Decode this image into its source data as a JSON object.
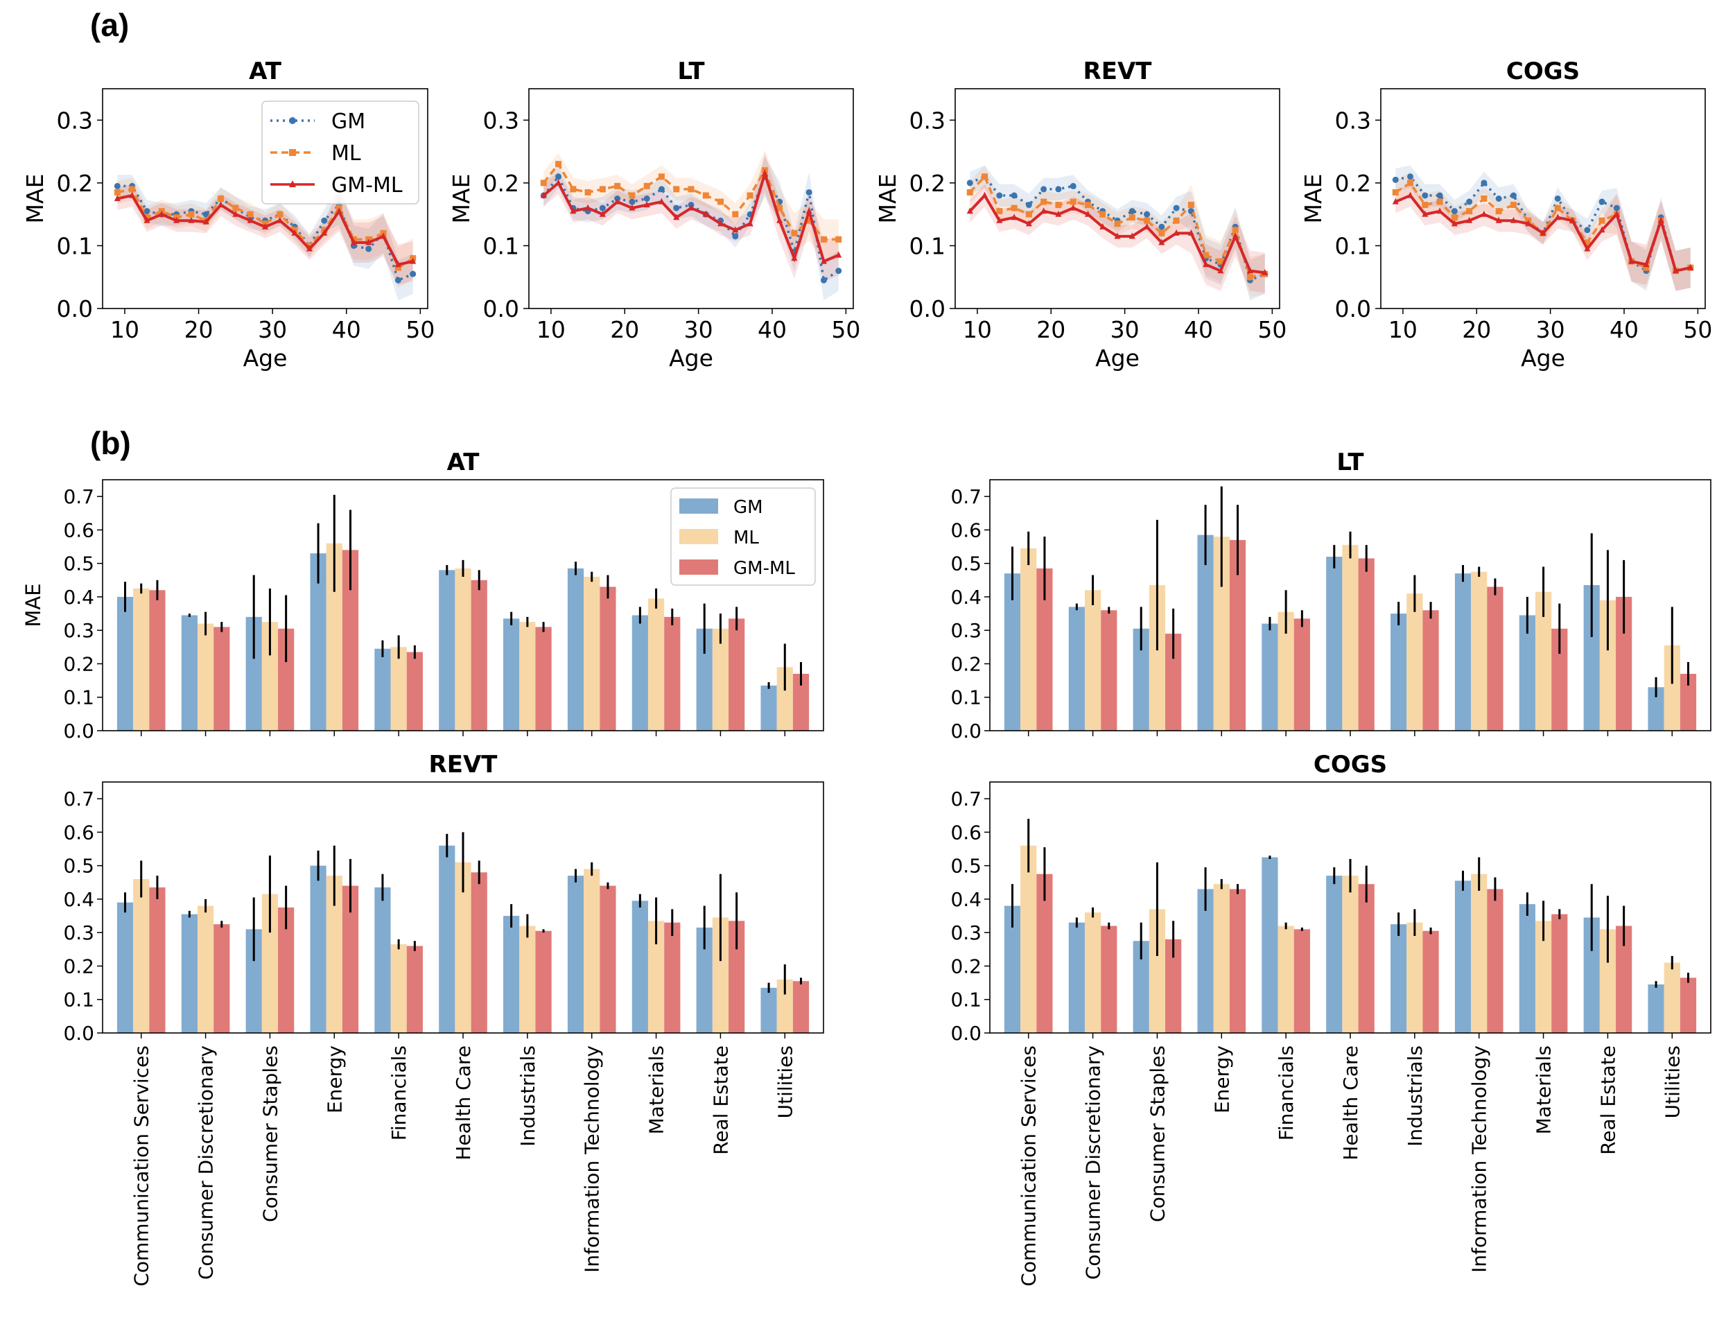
{
  "panel_labels": {
    "a": "(a)",
    "b": "(b)"
  },
  "colors": {
    "GM": "#3b75af",
    "ML": "#ef8636",
    "GM-ML": "#d62728",
    "GM_bar": "#82abd0",
    "ML_bar": "#f7d7a5",
    "GM-ML_bar": "#e07a78"
  },
  "chart_data": [
    {
      "type": "line",
      "title": "AT",
      "xlabel": "Age",
      "ylabel": "MAE",
      "xlim": [
        7,
        51
      ],
      "ylim": [
        0,
        0.35
      ],
      "xticks": [
        10,
        20,
        30,
        40,
        50
      ],
      "yticks": [
        "0.0",
        "0.1",
        "0.2",
        "0.3"
      ],
      "legend": {
        "placement": "upper-right",
        "entries": [
          "GM",
          "ML",
          "GM-ML"
        ]
      },
      "x": [
        9,
        11,
        13,
        15,
        17,
        19,
        21,
        23,
        25,
        27,
        29,
        31,
        33,
        35,
        37,
        39,
        41,
        43,
        45,
        47,
        49
      ],
      "series": [
        {
          "name": "GM",
          "values": [
            0.195,
            0.195,
            0.155,
            0.15,
            0.15,
            0.155,
            0.15,
            0.175,
            0.16,
            0.145,
            0.14,
            0.15,
            0.13,
            0.1,
            0.14,
            0.165,
            0.1,
            0.095,
            0.12,
            0.045,
            0.055
          ]
        },
        {
          "name": "ML",
          "values": [
            0.185,
            0.19,
            0.145,
            0.155,
            0.145,
            0.15,
            0.14,
            0.175,
            0.16,
            0.15,
            0.135,
            0.15,
            0.125,
            0.1,
            0.125,
            0.16,
            0.11,
            0.11,
            0.12,
            0.065,
            0.08
          ]
        },
        {
          "name": "GM-ML",
          "values": [
            0.175,
            0.18,
            0.14,
            0.15,
            0.14,
            0.14,
            0.138,
            0.165,
            0.15,
            0.14,
            0.13,
            0.14,
            0.12,
            0.095,
            0.12,
            0.155,
            0.105,
            0.105,
            0.115,
            0.07,
            0.075
          ]
        }
      ]
    },
    {
      "type": "line",
      "title": "LT",
      "xlabel": "Age",
      "ylabel": "MAE",
      "xlim": [
        7,
        51
      ],
      "ylim": [
        0,
        0.35
      ],
      "xticks": [
        10,
        20,
        30,
        40,
        50
      ],
      "yticks": [
        "0.0",
        "0.1",
        "0.2",
        "0.3"
      ],
      "x": [
        9,
        11,
        13,
        15,
        17,
        19,
        21,
        23,
        25,
        27,
        29,
        31,
        33,
        35,
        37,
        39,
        41,
        43,
        45,
        47,
        49
      ],
      "series": [
        {
          "name": "GM",
          "values": [
            0.18,
            0.21,
            0.16,
            0.155,
            0.16,
            0.175,
            0.17,
            0.175,
            0.19,
            0.16,
            0.165,
            0.15,
            0.14,
            0.115,
            0.15,
            0.21,
            0.17,
            0.09,
            0.185,
            0.045,
            0.06
          ]
        },
        {
          "name": "ML",
          "values": [
            0.2,
            0.23,
            0.19,
            0.185,
            0.19,
            0.195,
            0.18,
            0.195,
            0.21,
            0.19,
            0.19,
            0.18,
            0.17,
            0.15,
            0.18,
            0.22,
            0.16,
            0.12,
            0.14,
            0.11,
            0.11
          ]
        },
        {
          "name": "GM-ML",
          "values": [
            0.18,
            0.2,
            0.155,
            0.16,
            0.15,
            0.17,
            0.16,
            0.165,
            0.17,
            0.145,
            0.16,
            0.15,
            0.135,
            0.125,
            0.135,
            0.215,
            0.14,
            0.08,
            0.155,
            0.075,
            0.085
          ]
        }
      ]
    },
    {
      "type": "line",
      "title": "REVT",
      "xlabel": "Age",
      "ylabel": "MAE",
      "xlim": [
        7,
        51
      ],
      "ylim": [
        0,
        0.35
      ],
      "xticks": [
        10,
        20,
        30,
        40,
        50
      ],
      "yticks": [
        "0.0",
        "0.1",
        "0.2",
        "0.3"
      ],
      "x": [
        9,
        11,
        13,
        15,
        17,
        19,
        21,
        23,
        25,
        27,
        29,
        31,
        33,
        35,
        37,
        39,
        41,
        43,
        45,
        47,
        49
      ],
      "series": [
        {
          "name": "GM",
          "values": [
            0.2,
            0.21,
            0.18,
            0.18,
            0.165,
            0.19,
            0.19,
            0.195,
            0.17,
            0.155,
            0.14,
            0.155,
            0.15,
            0.13,
            0.16,
            0.155,
            0.08,
            0.07,
            0.13,
            0.045,
            0.055
          ]
        },
        {
          "name": "ML",
          "values": [
            0.185,
            0.21,
            0.155,
            0.16,
            0.15,
            0.17,
            0.165,
            0.17,
            0.165,
            0.15,
            0.135,
            0.145,
            0.14,
            0.12,
            0.14,
            0.165,
            0.085,
            0.075,
            0.125,
            0.05,
            0.055
          ]
        },
        {
          "name": "GM-ML",
          "values": [
            0.155,
            0.18,
            0.14,
            0.145,
            0.135,
            0.155,
            0.15,
            0.16,
            0.15,
            0.13,
            0.115,
            0.115,
            0.13,
            0.105,
            0.12,
            0.12,
            0.07,
            0.06,
            0.115,
            0.06,
            0.057
          ]
        }
      ]
    },
    {
      "type": "line",
      "title": "COGS",
      "xlabel": "Age",
      "ylabel": "MAE",
      "xlim": [
        7,
        51
      ],
      "ylim": [
        0,
        0.35
      ],
      "xticks": [
        10,
        20,
        30,
        40,
        50
      ],
      "yticks": [
        "0.0",
        "0.1",
        "0.2",
        "0.3"
      ],
      "x": [
        9,
        11,
        13,
        15,
        17,
        19,
        21,
        23,
        25,
        27,
        29,
        31,
        33,
        35,
        37,
        39,
        41,
        43,
        45,
        47,
        49
      ],
      "series": [
        {
          "name": "GM",
          "values": [
            0.205,
            0.21,
            0.18,
            0.18,
            0.155,
            0.17,
            0.2,
            0.175,
            0.18,
            0.14,
            0.12,
            0.175,
            0.14,
            0.125,
            0.17,
            0.16,
            0.075,
            0.06,
            0.145,
            0.06,
            0.065
          ]
        },
        {
          "name": "ML",
          "values": [
            0.185,
            0.2,
            0.165,
            0.17,
            0.145,
            0.155,
            0.175,
            0.155,
            0.165,
            0.14,
            0.12,
            0.16,
            0.14,
            0.105,
            0.14,
            0.15,
            0.075,
            0.065,
            0.14,
            0.06,
            0.065
          ]
        },
        {
          "name": "GM-ML",
          "values": [
            0.17,
            0.18,
            0.15,
            0.155,
            0.135,
            0.14,
            0.15,
            0.14,
            0.14,
            0.135,
            0.12,
            0.145,
            0.14,
            0.095,
            0.125,
            0.15,
            0.075,
            0.07,
            0.14,
            0.06,
            0.065
          ]
        }
      ]
    },
    {
      "type": "bar",
      "title": "AT",
      "ylabel": "MAE",
      "ylim": [
        0,
        0.75
      ],
      "yticks": [
        "0.0",
        "0.1",
        "0.2",
        "0.3",
        "0.4",
        "0.5",
        "0.6",
        "0.7"
      ],
      "legend": {
        "placement": "upper-right",
        "entries": [
          "GM",
          "ML",
          "GM-ML"
        ]
      },
      "categories": [
        "Communication Services",
        "Consumer Discretionary",
        "Consumer Staples",
        "Energy",
        "Financials",
        "Health Care",
        "Industrials",
        "Information Technology",
        "Materials",
        "Real Estate",
        "Utilities"
      ],
      "series": [
        {
          "name": "GM",
          "values": [
            0.4,
            0.345,
            0.34,
            0.53,
            0.245,
            0.48,
            0.335,
            0.485,
            0.345,
            0.305,
            0.135
          ],
          "err": [
            0.045,
            0.005,
            0.125,
            0.09,
            0.025,
            0.015,
            0.02,
            0.02,
            0.025,
            0.075,
            0.01
          ]
        },
        {
          "name": "ML",
          "values": [
            0.425,
            0.32,
            0.325,
            0.56,
            0.25,
            0.485,
            0.325,
            0.46,
            0.395,
            0.305,
            0.19
          ],
          "err": [
            0.015,
            0.035,
            0.1,
            0.145,
            0.035,
            0.025,
            0.015,
            0.015,
            0.03,
            0.045,
            0.07
          ]
        },
        {
          "name": "GM-ML",
          "values": [
            0.42,
            0.31,
            0.305,
            0.54,
            0.235,
            0.45,
            0.31,
            0.43,
            0.34,
            0.335,
            0.17
          ],
          "err": [
            0.03,
            0.015,
            0.1,
            0.12,
            0.02,
            0.03,
            0.015,
            0.035,
            0.025,
            0.035,
            0.035
          ]
        }
      ]
    },
    {
      "type": "bar",
      "title": "LT",
      "ylabel": "",
      "ylim": [
        0,
        0.75
      ],
      "yticks": [
        "0.0",
        "0.1",
        "0.2",
        "0.3",
        "0.4",
        "0.5",
        "0.6",
        "0.7"
      ],
      "categories": [
        "Communication Services",
        "Consumer Discretionary",
        "Consumer Staples",
        "Energy",
        "Financials",
        "Health Care",
        "Industrials",
        "Information Technology",
        "Materials",
        "Real Estate",
        "Utilities"
      ],
      "series": [
        {
          "name": "GM",
          "values": [
            0.47,
            0.37,
            0.305,
            0.585,
            0.32,
            0.52,
            0.35,
            0.47,
            0.345,
            0.435,
            0.13
          ],
          "err": [
            0.08,
            0.01,
            0.065,
            0.09,
            0.02,
            0.035,
            0.035,
            0.025,
            0.055,
            0.155,
            0.03
          ]
        },
        {
          "name": "ML",
          "values": [
            0.545,
            0.42,
            0.435,
            0.58,
            0.355,
            0.555,
            0.41,
            0.475,
            0.415,
            0.39,
            0.255
          ],
          "err": [
            0.05,
            0.045,
            0.195,
            0.15,
            0.065,
            0.04,
            0.055,
            0.015,
            0.075,
            0.15,
            0.115
          ]
        },
        {
          "name": "GM-ML",
          "values": [
            0.485,
            0.36,
            0.29,
            0.57,
            0.335,
            0.515,
            0.36,
            0.43,
            0.305,
            0.4,
            0.17
          ],
          "err": [
            0.095,
            0.01,
            0.075,
            0.105,
            0.025,
            0.04,
            0.025,
            0.025,
            0.075,
            0.11,
            0.035
          ]
        }
      ]
    },
    {
      "type": "bar",
      "title": "REVT",
      "ylabel": "",
      "ylim": [
        0,
        0.75
      ],
      "yticks": [
        "0.0",
        "0.1",
        "0.2",
        "0.3",
        "0.4",
        "0.5",
        "0.6",
        "0.7"
      ],
      "categories": [
        "Communication Services",
        "Consumer Discretionary",
        "Consumer Staples",
        "Energy",
        "Financials",
        "Health Care",
        "Industrials",
        "Information Technology",
        "Materials",
        "Real Estate",
        "Utilities"
      ],
      "series": [
        {
          "name": "GM",
          "values": [
            0.39,
            0.355,
            0.31,
            0.5,
            0.435,
            0.56,
            0.35,
            0.47,
            0.395,
            0.315,
            0.135
          ],
          "err": [
            0.03,
            0.01,
            0.095,
            0.045,
            0.04,
            0.035,
            0.035,
            0.02,
            0.02,
            0.065,
            0.015
          ]
        },
        {
          "name": "ML",
          "values": [
            0.46,
            0.38,
            0.415,
            0.47,
            0.265,
            0.51,
            0.32,
            0.49,
            0.335,
            0.345,
            0.16
          ],
          "err": [
            0.055,
            0.02,
            0.115,
            0.09,
            0.015,
            0.09,
            0.035,
            0.02,
            0.07,
            0.13,
            0.045
          ]
        },
        {
          "name": "GM-ML",
          "values": [
            0.435,
            0.325,
            0.375,
            0.44,
            0.26,
            0.48,
            0.305,
            0.44,
            0.33,
            0.335,
            0.155
          ],
          "err": [
            0.035,
            0.01,
            0.065,
            0.08,
            0.015,
            0.035,
            0.005,
            0.01,
            0.04,
            0.085,
            0.01
          ]
        }
      ]
    },
    {
      "type": "bar",
      "title": "COGS",
      "ylabel": "",
      "ylim": [
        0,
        0.75
      ],
      "yticks": [
        "0.0",
        "0.1",
        "0.2",
        "0.3",
        "0.4",
        "0.5",
        "0.6",
        "0.7"
      ],
      "categories": [
        "Communication Services",
        "Consumer Discretionary",
        "Consumer Staples",
        "Energy",
        "Financials",
        "Health Care",
        "Industrials",
        "Information Technology",
        "Materials",
        "Real Estate",
        "Utilities"
      ],
      "series": [
        {
          "name": "GM",
          "values": [
            0.38,
            0.33,
            0.275,
            0.43,
            0.525,
            0.47,
            0.325,
            0.455,
            0.385,
            0.345,
            0.145
          ],
          "err": [
            0.065,
            0.015,
            0.055,
            0.065,
            0.005,
            0.025,
            0.035,
            0.03,
            0.035,
            0.1,
            0.01
          ]
        },
        {
          "name": "ML",
          "values": [
            0.56,
            0.36,
            0.37,
            0.445,
            0.32,
            0.47,
            0.33,
            0.475,
            0.335,
            0.31,
            0.21
          ],
          "err": [
            0.08,
            0.015,
            0.14,
            0.015,
            0.01,
            0.05,
            0.04,
            0.05,
            0.06,
            0.1,
            0.02
          ]
        },
        {
          "name": "GM-ML",
          "values": [
            0.475,
            0.32,
            0.28,
            0.43,
            0.31,
            0.445,
            0.305,
            0.43,
            0.355,
            0.32,
            0.165
          ],
          "err": [
            0.08,
            0.01,
            0.055,
            0.015,
            0.005,
            0.055,
            0.01,
            0.035,
            0.015,
            0.06,
            0.015
          ]
        }
      ]
    }
  ]
}
